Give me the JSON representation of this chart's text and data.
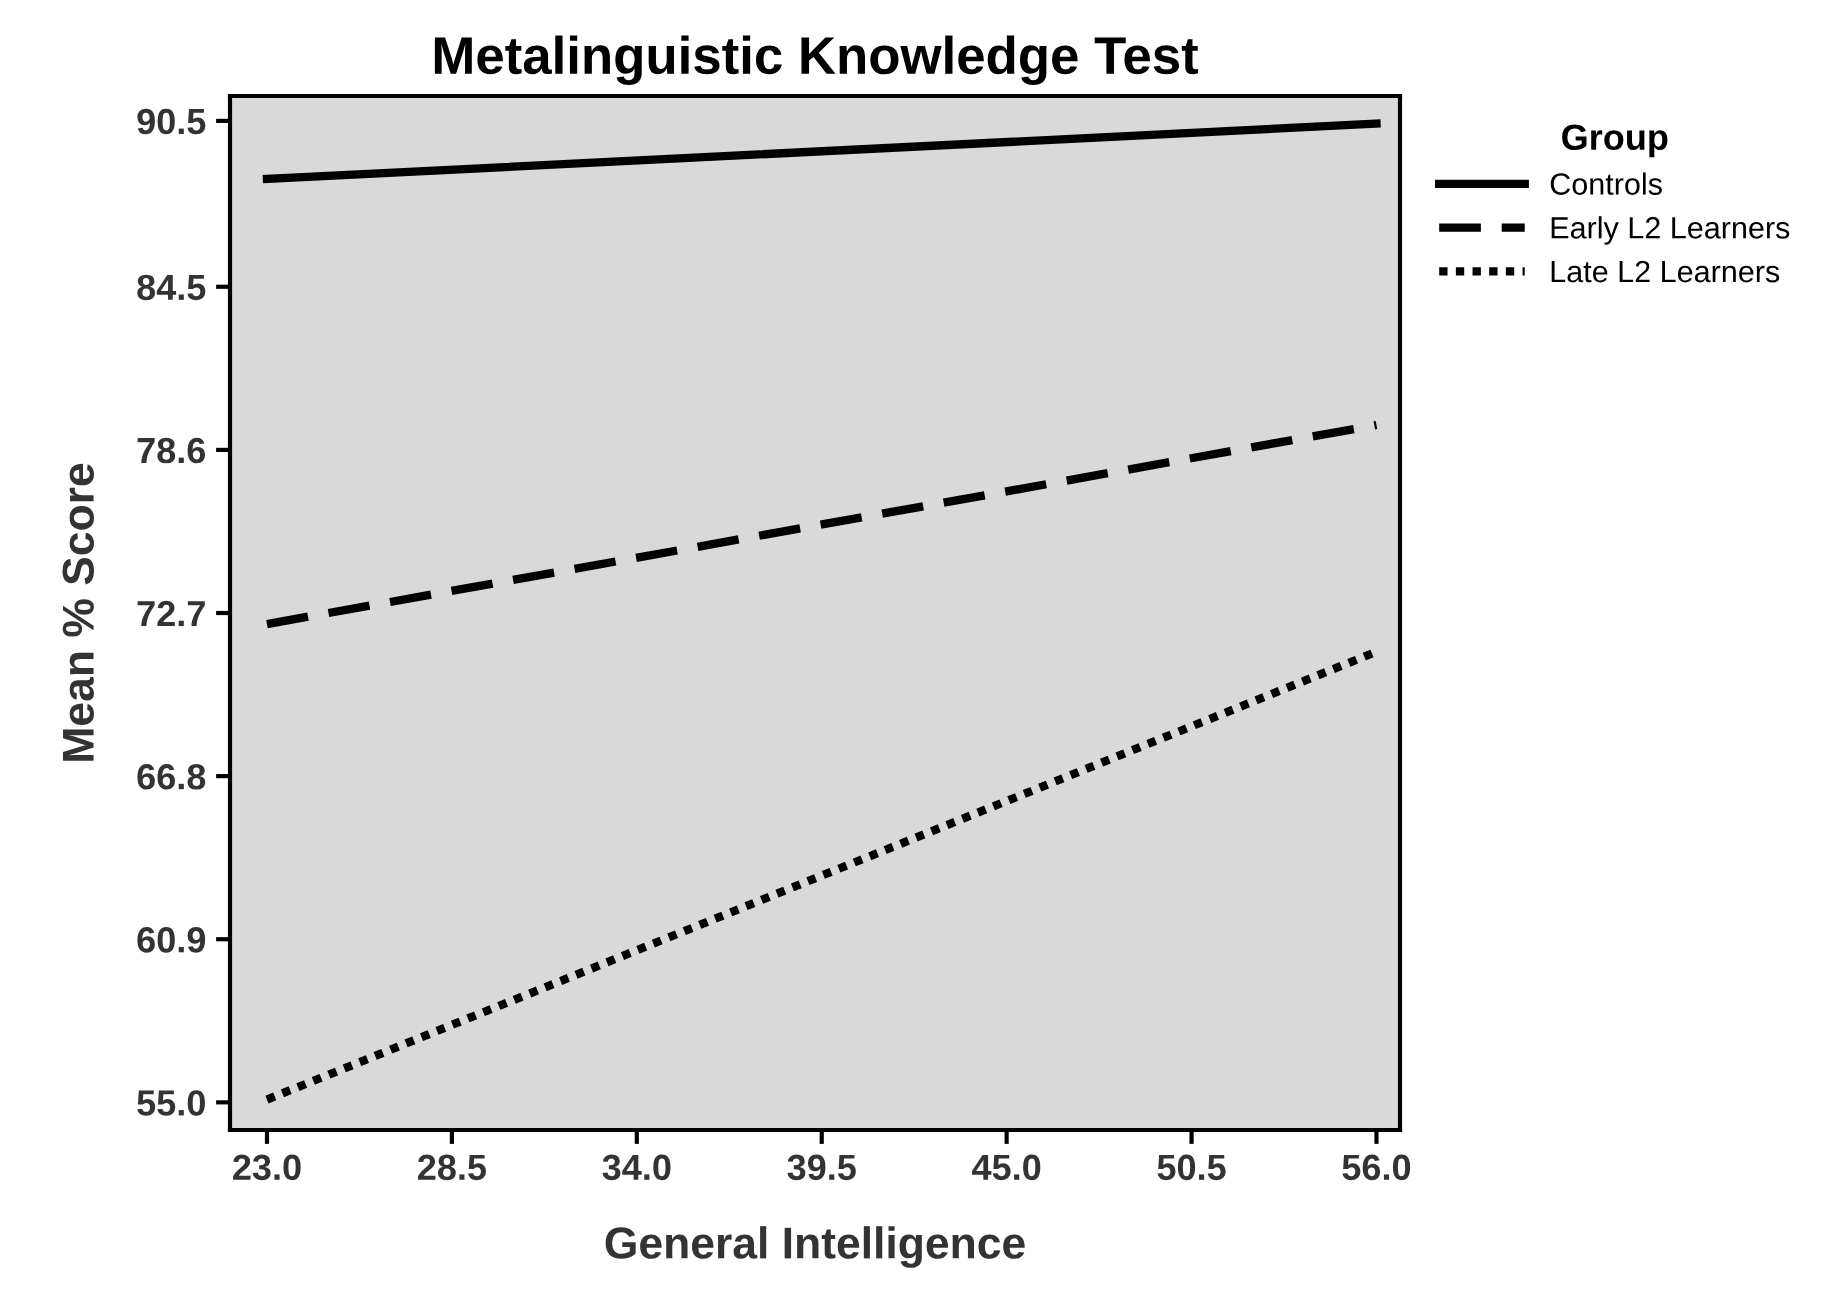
{
  "chart_data": {
    "type": "line",
    "title": "Metalinguistic Knowledge Test",
    "xlabel": "General Intelligence",
    "ylabel": "Mean % Score",
    "legend_title": "Group",
    "x": [
      23.0,
      56.0
    ],
    "series": [
      {
        "name": "Controls",
        "color": "#000000",
        "values": [
          88.4,
          90.4
        ],
        "line_style": "solid"
      },
      {
        "name": "Early L2 Learners",
        "color": "#000000",
        "values": [
          72.3,
          79.5
        ],
        "line_style": "dashed"
      },
      {
        "name": "Late L2 Learners",
        "color": "#000000",
        "values": [
          55.1,
          71.3
        ],
        "line_style": "dotted"
      }
    ],
    "xlim": [
      21.9,
      56.7
    ],
    "ylim": [
      54.0,
      91.4
    ],
    "xticks": [
      {
        "value": 23.0,
        "label": "23.0"
      },
      {
        "value": 28.5,
        "label": "28.5"
      },
      {
        "value": 34.0,
        "label": "34.0"
      },
      {
        "value": 39.5,
        "label": "39.5"
      },
      {
        "value": 45.0,
        "label": "45.0"
      },
      {
        "value": 50.5,
        "label": "50.5"
      },
      {
        "value": 56.0,
        "label": "56.0"
      }
    ],
    "yticks": [
      {
        "value": 55.0,
        "label": "55.0"
      },
      60.9,
      66.8,
      72.7,
      78.6,
      84.5,
      90.5
    ],
    "grid": false,
    "legend": "right",
    "marker": "none"
  }
}
